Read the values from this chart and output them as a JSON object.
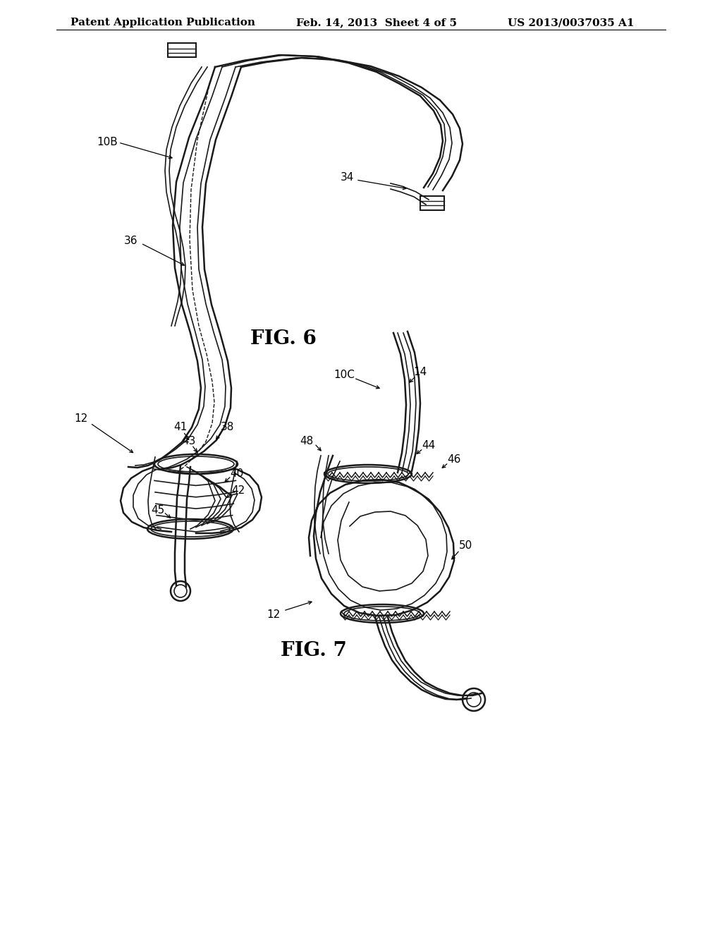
{
  "header_left": "Patent Application Publication",
  "header_mid": "Feb. 14, 2013  Sheet 4 of 5",
  "header_right": "US 2013/0037035 A1",
  "fig6_label": "FIG. 6",
  "fig7_label": "FIG. 7",
  "background_color": "#ffffff",
  "line_color": "#1a1a1a",
  "header_fontsize": 11,
  "label_fontsize": 11,
  "fig_label_fontsize": 20
}
